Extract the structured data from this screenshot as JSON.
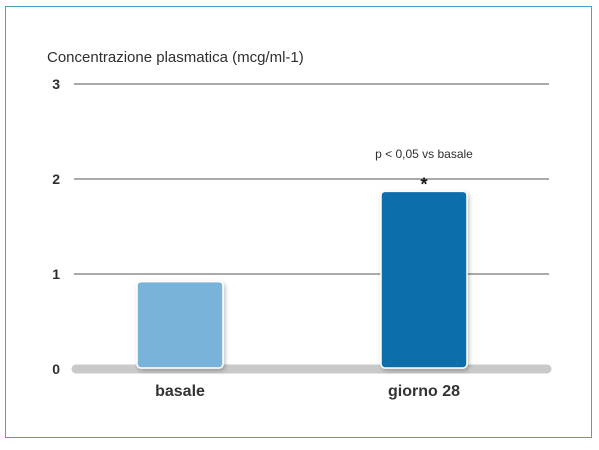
{
  "chart_data": {
    "type": "bar",
    "title": "",
    "ylabel": "Concentrazione plasmatica (mcg/ml-1)",
    "xlabel": "",
    "ylim": [
      0,
      3
    ],
    "yticks": [
      "0",
      "1",
      "2",
      "3"
    ],
    "grid": true,
    "categories": [
      "basale",
      "giorno 28"
    ],
    "values": [
      0.92,
      1.87
    ],
    "colors": [
      "#7ab3da",
      "#0a6eab"
    ],
    "annotations": [
      {
        "category": "giorno 28",
        "text": "p < 0,05 vs basale",
        "marker": "*"
      }
    ]
  }
}
